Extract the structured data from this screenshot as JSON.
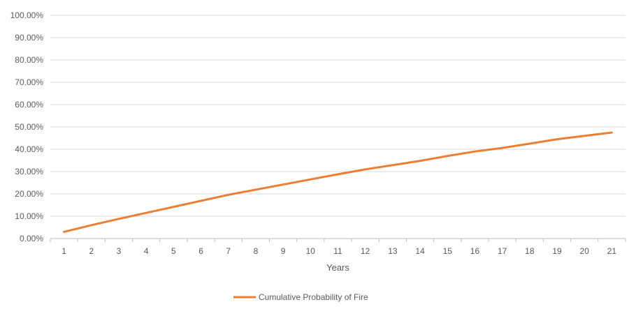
{
  "chart_data": {
    "type": "line",
    "title": "",
    "xlabel": "Years",
    "ylabel": "",
    "x": [
      1,
      2,
      3,
      4,
      5,
      6,
      7,
      8,
      9,
      10,
      11,
      12,
      13,
      14,
      15,
      16,
      17,
      18,
      19,
      20,
      21
    ],
    "x_tick_labels": [
      "1",
      "2",
      "3",
      "4",
      "5",
      "6",
      "7",
      "8",
      "9",
      "10",
      "11",
      "12",
      "13",
      "14",
      "15",
      "16",
      "17",
      "18",
      "19",
      "20",
      "21"
    ],
    "y_tick_labels": [
      "0.00%",
      "10.00%",
      "20.00%",
      "30.00%",
      "40.00%",
      "50.00%",
      "60.00%",
      "70.00%",
      "80.00%",
      "90.00%",
      "100.00%"
    ],
    "y_ticks": [
      0,
      10,
      20,
      30,
      40,
      50,
      60,
      70,
      80,
      90,
      100
    ],
    "ylim": [
      0,
      100
    ],
    "grid": true,
    "legend_position": "bottom",
    "series": [
      {
        "name": "Cumulative Probability of Fire",
        "color": "#ED7D31",
        "values": [
          3.0,
          6.0,
          8.8,
          11.5,
          14.2,
          16.9,
          19.6,
          21.9,
          24.2,
          26.5,
          28.8,
          31.0,
          32.9,
          34.8,
          37.0,
          39.0,
          40.6,
          42.5,
          44.5,
          46.0,
          47.5
        ]
      }
    ]
  }
}
